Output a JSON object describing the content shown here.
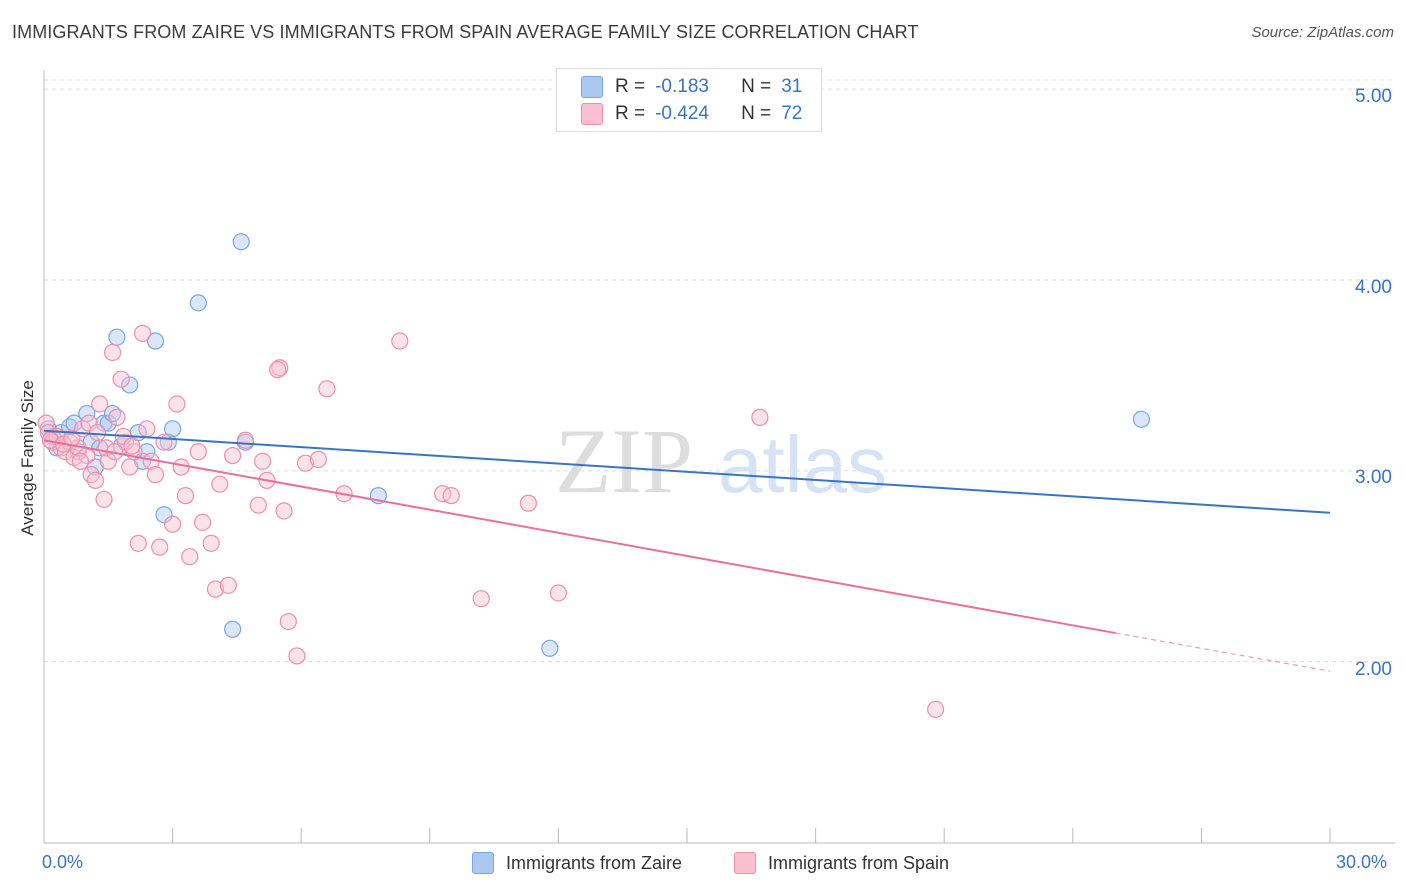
{
  "title": "IMMIGRANTS FROM ZAIRE VS IMMIGRANTS FROM SPAIN AVERAGE FAMILY SIZE CORRELATION CHART",
  "source": "Source: ZipAtlas.com",
  "watermark": {
    "zip": "ZIP",
    "atlas": "atlas"
  },
  "legend": {
    "rows": [
      {
        "r_label": "R =",
        "r_value": "-0.183",
        "n_label": "N =",
        "n_value": "31",
        "color": "#aac8f0",
        "border": "#7aa6e0"
      },
      {
        "r_label": "R =",
        "r_value": "-0.424",
        "n_label": "N =",
        "n_value": "72",
        "color": "#f8c0d0",
        "border": "#ee8fac"
      }
    ]
  },
  "bottom_legend": [
    {
      "label": "Immigrants from Zaire",
      "color": "#aac8f0",
      "border": "#7aa6e0"
    },
    {
      "label": "Immigrants from Spain",
      "color": "#f8c0d0",
      "border": "#ee8fac"
    }
  ],
  "chart_data": {
    "type": "scatter",
    "xlabel": "",
    "ylabel": "Average Family Size",
    "x_tick_labels": [
      "0.0%",
      "30.0%"
    ],
    "y_tick_labels": [
      "2.00",
      "3.00",
      "4.00",
      "5.00"
    ],
    "xlim": [
      0,
      30
    ],
    "ylim": [
      1.05,
      5.1
    ],
    "grid": true,
    "series": [
      {
        "name": "Immigrants from Zaire",
        "color": "#3a74c4",
        "fill": "rgba(170,200,240,0.45)",
        "stroke": "#7aa6e0",
        "trend": {
          "x0": 0,
          "y0": 3.21,
          "x1": 30,
          "y1": 2.78
        },
        "points": [
          [
            0.1,
            3.22
          ],
          [
            0.2,
            3.18
          ],
          [
            0.4,
            3.2
          ],
          [
            0.6,
            3.23
          ],
          [
            0.7,
            3.25
          ],
          [
            0.8,
            3.1
          ],
          [
            1.0,
            3.3
          ],
          [
            1.1,
            3.15
          ],
          [
            1.2,
            3.02
          ],
          [
            1.4,
            3.25
          ],
          [
            1.5,
            3.25
          ],
          [
            1.6,
            3.3
          ],
          [
            1.7,
            3.7
          ],
          [
            1.8,
            3.13
          ],
          [
            2.0,
            3.45
          ],
          [
            2.2,
            3.2
          ],
          [
            2.3,
            3.05
          ],
          [
            2.4,
            3.1
          ],
          [
            2.6,
            3.68
          ],
          [
            2.8,
            2.77
          ],
          [
            2.9,
            3.15
          ],
          [
            3.0,
            3.22
          ],
          [
            3.6,
            3.88
          ],
          [
            4.4,
            2.17
          ],
          [
            4.6,
            4.2
          ],
          [
            4.7,
            3.15
          ],
          [
            7.8,
            2.87
          ],
          [
            11.8,
            2.07
          ],
          [
            25.6,
            3.27
          ],
          [
            0.3,
            3.12
          ],
          [
            1.3,
            3.12
          ]
        ]
      },
      {
        "name": "Immigrants from Spain",
        "color": "#e8709a",
        "fill": "rgba(248,192,208,0.45)",
        "stroke": "#ee8fac",
        "trend": {
          "x0": 0,
          "y0": 3.16,
          "x1": 25.0,
          "y1": 2.15,
          "dash_to_x": 30,
          "dash_to_y": 1.95
        },
        "points": [
          [
            0.05,
            3.25
          ],
          [
            0.1,
            3.2
          ],
          [
            0.2,
            3.15
          ],
          [
            0.3,
            3.18
          ],
          [
            0.4,
            3.12
          ],
          [
            0.5,
            3.1
          ],
          [
            0.6,
            3.15
          ],
          [
            0.7,
            3.07
          ],
          [
            0.8,
            3.12
          ],
          [
            0.9,
            3.22
          ],
          [
            1.0,
            3.08
          ],
          [
            1.1,
            2.98
          ],
          [
            1.2,
            2.95
          ],
          [
            1.3,
            3.35
          ],
          [
            1.4,
            2.85
          ],
          [
            1.5,
            3.05
          ],
          [
            1.6,
            3.62
          ],
          [
            1.7,
            3.28
          ],
          [
            1.8,
            3.48
          ],
          [
            1.9,
            3.15
          ],
          [
            2.0,
            3.02
          ],
          [
            2.1,
            3.1
          ],
          [
            2.2,
            2.62
          ],
          [
            2.3,
            3.72
          ],
          [
            2.4,
            3.22
          ],
          [
            2.5,
            3.05
          ],
          [
            2.6,
            2.98
          ],
          [
            2.7,
            2.6
          ],
          [
            2.8,
            3.15
          ],
          [
            3.0,
            2.72
          ],
          [
            3.1,
            3.35
          ],
          [
            3.2,
            3.02
          ],
          [
            3.3,
            2.87
          ],
          [
            3.4,
            2.55
          ],
          [
            3.6,
            3.1
          ],
          [
            3.7,
            2.73
          ],
          [
            3.9,
            2.62
          ],
          [
            4.0,
            2.38
          ],
          [
            4.1,
            2.93
          ],
          [
            4.3,
            2.4
          ],
          [
            4.4,
            3.08
          ],
          [
            4.7,
            3.16
          ],
          [
            5.0,
            2.82
          ],
          [
            5.1,
            3.05
          ],
          [
            5.2,
            2.95
          ],
          [
            5.5,
            3.54
          ],
          [
            5.6,
            2.79
          ],
          [
            5.7,
            2.21
          ],
          [
            5.9,
            2.03
          ],
          [
            6.1,
            3.04
          ],
          [
            6.4,
            3.06
          ],
          [
            6.6,
            3.43
          ],
          [
            7.0,
            2.88
          ],
          [
            8.3,
            3.68
          ],
          [
            9.3,
            2.88
          ],
          [
            9.5,
            2.87
          ],
          [
            10.2,
            2.33
          ],
          [
            11.3,
            2.83
          ],
          [
            12.0,
            2.36
          ],
          [
            16.7,
            3.28
          ],
          [
            20.8,
            1.75
          ],
          [
            0.15,
            3.16
          ],
          [
            0.45,
            3.14
          ],
          [
            0.65,
            3.17
          ],
          [
            0.85,
            3.05
          ],
          [
            1.05,
            3.25
          ],
          [
            1.25,
            3.2
          ],
          [
            1.45,
            3.12
          ],
          [
            1.65,
            3.1
          ],
          [
            1.85,
            3.18
          ],
          [
            2.05,
            3.13
          ],
          [
            5.45,
            3.53
          ]
        ]
      }
    ]
  }
}
